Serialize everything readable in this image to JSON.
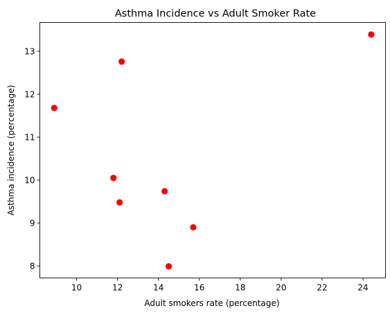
{
  "chart_data": {
    "type": "scatter",
    "title": "Asthma Incidence vs Adult Smoker Rate",
    "xlabel": "Adult smokers rate (percentage)",
    "ylabel": "Asthma incidence (percentage)",
    "xlim": [
      8.2,
      25.1
    ],
    "ylim": [
      7.72,
      13.67
    ],
    "xticks": [
      10,
      12,
      14,
      16,
      18,
      20,
      22,
      24
    ],
    "yticks": [
      8,
      9,
      10,
      11,
      12,
      13
    ],
    "grid": false,
    "legend": "none",
    "marker_color": "#ff0000",
    "points": [
      {
        "x": 8.9,
        "y": 11.68
      },
      {
        "x": 12.2,
        "y": 12.76
      },
      {
        "x": 24.4,
        "y": 13.39
      },
      {
        "x": 11.8,
        "y": 10.05
      },
      {
        "x": 12.1,
        "y": 9.48
      },
      {
        "x": 14.3,
        "y": 9.74
      },
      {
        "x": 15.7,
        "y": 8.9
      },
      {
        "x": 14.5,
        "y": 7.99
      }
    ]
  }
}
